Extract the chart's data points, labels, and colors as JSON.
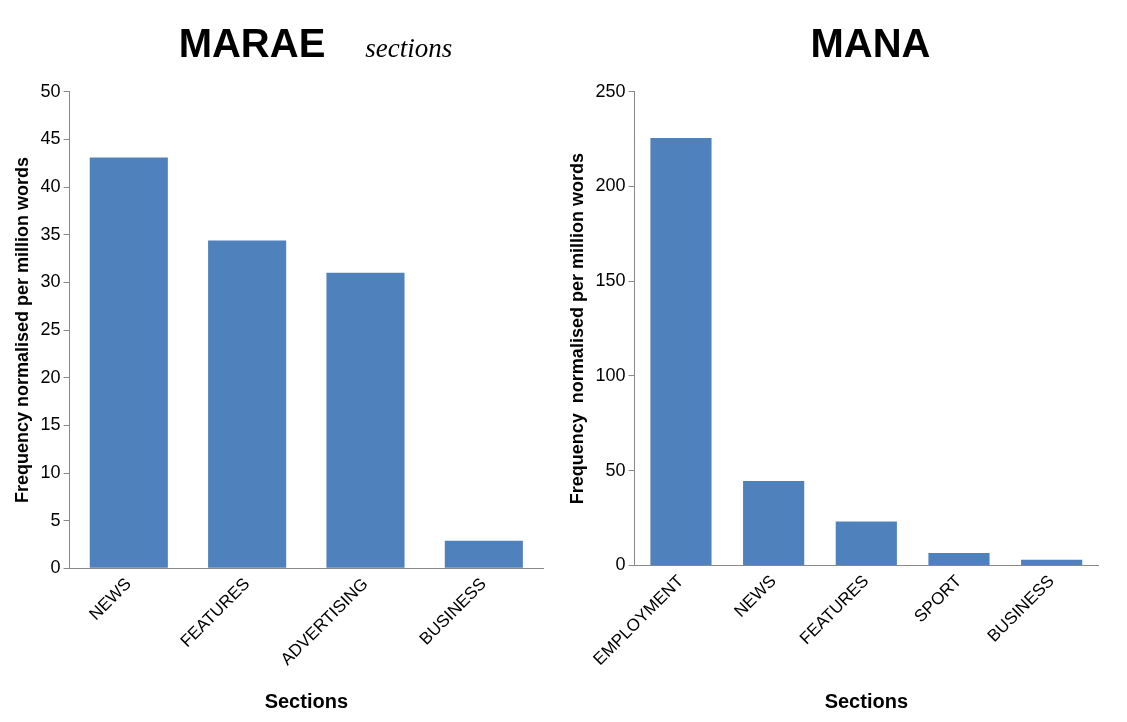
{
  "chart_data": [
    {
      "type": "bar",
      "title": "MARAE",
      "subtitle": "sections",
      "xlabel": "Sections",
      "ylabel": "Frequency normalised per million words",
      "categories": [
        "NEWS",
        "FEATURES",
        "ADVERTISING",
        "BUSINESS"
      ],
      "values": [
        43.1,
        34.4,
        31.0,
        2.9
      ],
      "color": "#4f81bd",
      "ylim": [
        0,
        50
      ],
      "yticks": [
        0,
        5,
        10,
        15,
        20,
        25,
        30,
        35,
        40,
        45,
        50
      ],
      "grid": false,
      "legend": false
    },
    {
      "type": "bar",
      "title": "MANA",
      "xlabel": "Sections",
      "ylabel": "Frequency  normalised per million words",
      "categories": [
        "EMPLOYMENT",
        "NEWS",
        "FEATURES",
        "SPORT",
        "BUSINESS"
      ],
      "values": [
        225.6,
        44.6,
        23.2,
        6.5,
        3.0
      ],
      "color": "#4f81bd",
      "ylim": [
        0,
        250
      ],
      "yticks": [
        0,
        50,
        100,
        150,
        200,
        250
      ],
      "grid": false,
      "legend": false
    }
  ]
}
